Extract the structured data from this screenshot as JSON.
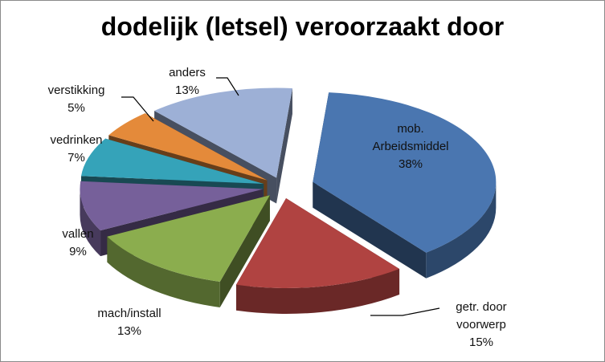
{
  "chart_data": {
    "type": "pie",
    "title": "dodelijk (letsel) veroorzaakt door",
    "three_d": true,
    "exploded": true,
    "slices": [
      {
        "label": [
          "mob.",
          "Arbeidsmiddel"
        ],
        "pct_label": "38%",
        "value": 38,
        "color": "#4a76b0"
      },
      {
        "label": [
          "getr. door",
          "voorwerp"
        ],
        "pct_label": "15%",
        "value": 15,
        "color": "#b04341"
      },
      {
        "label": [
          "mach/install"
        ],
        "pct_label": "13%",
        "value": 13,
        "color": "#8bad4e"
      },
      {
        "label": [
          "vallen"
        ],
        "pct_label": "9%",
        "value": 9,
        "color": "#76609a"
      },
      {
        "label": [
          "vedrinken"
        ],
        "pct_label": "7%",
        "value": 7,
        "color": "#35a3b9"
      },
      {
        "label": [
          "verstikking"
        ],
        "pct_label": "5%",
        "value": 5,
        "color": "#e48a3a"
      },
      {
        "label": [
          "anders"
        ],
        "pct_label": "13%",
        "value": 13,
        "color": "#9db0d6"
      }
    ]
  }
}
